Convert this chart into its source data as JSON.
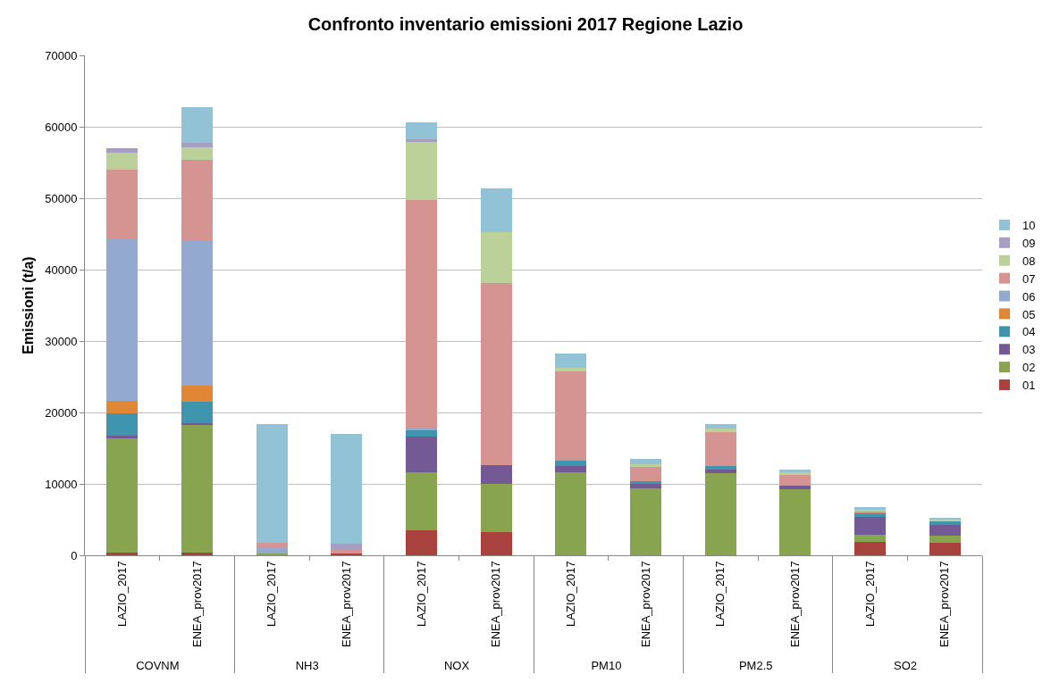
{
  "chart_data": {
    "type": "bar",
    "stacked": true,
    "title": "Confronto inventario emissioni 2017 Regione Lazio",
    "ylabel": "Emissioni (t/a)",
    "categories": [
      "LAZIO_2017",
      "ENEA_prov2017",
      "LAZIO_2017",
      "ENEA_prov2017",
      "LAZIO_2017",
      "ENEA_prov2017",
      "LAZIO_2017",
      "ENEA_prov2017",
      "LAZIO_2017",
      "ENEA_prov2017",
      "LAZIO_2017",
      "ENEA_prov2017"
    ],
    "annotations": [
      "COVNM",
      "NH3",
      "NOX",
      "PM10",
      "PM2.5",
      "SO2"
    ],
    "series": [
      {
        "name": "01",
        "color": "#a9413f",
        "values": [
          400,
          400,
          null,
          200,
          3500,
          3300,
          null,
          null,
          null,
          null,
          1900,
          1800
        ]
      },
      {
        "name": "02",
        "color": "#88a44e",
        "values": [
          16000,
          17900,
          300,
          null,
          8100,
          6700,
          11600,
          9400,
          11500,
          9300,
          1000,
          1000
        ]
      },
      {
        "name": "03",
        "color": "#735a94",
        "values": [
          300,
          200,
          null,
          null,
          5000,
          2600,
          900,
          600,
          500,
          500,
          2500,
          1400
        ]
      },
      {
        "name": "04",
        "color": "#3f95ae",
        "values": [
          3200,
          3000,
          null,
          null,
          1000,
          null,
          800,
          400,
          500,
          null,
          500,
          500
        ]
      },
      {
        "name": "05",
        "color": "#e08635",
        "values": [
          1700,
          2300,
          null,
          null,
          null,
          null,
          null,
          null,
          null,
          null,
          null,
          null
        ]
      },
      {
        "name": "06",
        "color": "#93a9d0",
        "values": [
          22700,
          20200,
          700,
          null,
          200,
          null,
          null,
          null,
          null,
          null,
          null,
          null
        ]
      },
      {
        "name": "07",
        "color": "#d59392",
        "values": [
          9700,
          11400,
          800,
          500,
          32000,
          25500,
          12400,
          2000,
          4700,
          1500,
          300,
          null
        ]
      },
      {
        "name": "08",
        "color": "#bcd19a",
        "values": [
          2400,
          1700,
          null,
          null,
          8100,
          7200,
          500,
          400,
          500,
          300,
          200,
          300
        ]
      },
      {
        "name": "09",
        "color": "#a79ec3",
        "values": [
          600,
          600,
          null,
          900,
          400,
          null,
          null,
          null,
          null,
          null,
          null,
          null
        ]
      },
      {
        "name": "10",
        "color": "#92c2d6",
        "values": [
          null,
          5100,
          16600,
          15400,
          2300,
          6100,
          2000,
          700,
          700,
          400,
          300,
          300
        ]
      }
    ],
    "ylim": [
      0,
      70000
    ],
    "yticks": [
      0,
      10000,
      20000,
      30000,
      40000,
      50000,
      60000,
      70000
    ],
    "grid": "y",
    "legend": "right"
  }
}
